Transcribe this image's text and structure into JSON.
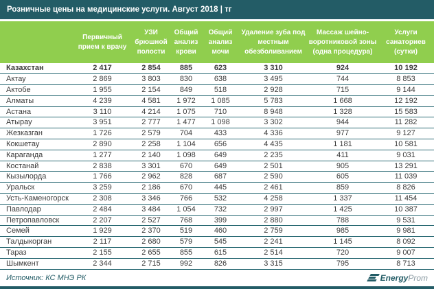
{
  "title": "Розничные цены на медицинские услуги. Август 2018 | тг",
  "footer": {
    "source": "Источник: КС МНЭ РК",
    "logo": {
      "icon": "energyprom-logo",
      "text_bold": "Energy",
      "text_light": "Prom"
    }
  },
  "colors": {
    "title_bar_teal": "#235c66",
    "header_green": "#90ce4e",
    "row_line": "#2a6a74",
    "body_text": "#3a3a3a",
    "footer_teal": "#1f5a64"
  },
  "chart_data": {
    "type": "table",
    "title": "Розничные цены на медицинские услуги. Август 2018 | тг",
    "unit": "тг",
    "row_header": "",
    "columns": [
      "Первичный прием к врачу",
      "УЗИ брюшной полости",
      "Общий анализ крови",
      "Общий анализ мочи",
      "Удаление зуба под местным обезболиванием",
      "Массаж шейно-воротниковой зоны (одна процедура)",
      "Услуги санаториев (сутки)"
    ],
    "rows": [
      {
        "name": "Казахстан",
        "values": [
          "2 417",
          "2 854",
          "885",
          "623",
          "3 310",
          "924",
          "10 192"
        ]
      },
      {
        "name": "Актау",
        "values": [
          "2 869",
          "3 803",
          "830",
          "638",
          "3 495",
          "744",
          "8 853"
        ]
      },
      {
        "name": "Актобе",
        "values": [
          "1 955",
          "2 154",
          "849",
          "518",
          "2 928",
          "715",
          "9 144"
        ]
      },
      {
        "name": "Алматы",
        "values": [
          "4 239",
          "4 581",
          "1 972",
          "1 085",
          "5 783",
          "1 668",
          "12 192"
        ]
      },
      {
        "name": "Астана",
        "values": [
          "3 110",
          "4 214",
          "1 075",
          "710",
          "8 948",
          "1 328",
          "15 583"
        ]
      },
      {
        "name": "Атырау",
        "values": [
          "3 951",
          "2 777",
          "1 477",
          "1 098",
          "3 302",
          "944",
          "11 282"
        ]
      },
      {
        "name": "Жезказган",
        "values": [
          "1 726",
          "2 579",
          "704",
          "433",
          "4 336",
          "977",
          "9 127"
        ]
      },
      {
        "name": "Кокшетау",
        "values": [
          "2 890",
          "2 258",
          "1 104",
          "656",
          "4 435",
          "1 181",
          "10 581"
        ]
      },
      {
        "name": "Караганда",
        "values": [
          "1 277",
          "2 140",
          "1 098",
          "649",
          "2 235",
          "411",
          "9 031"
        ]
      },
      {
        "name": "Костанай",
        "values": [
          "2 838",
          "3 301",
          "670",
          "649",
          "2 501",
          "905",
          "13 291"
        ]
      },
      {
        "name": "Кызылорда",
        "values": [
          "1 766",
          "2 962",
          "828",
          "687",
          "2 590",
          "605",
          "11 039"
        ]
      },
      {
        "name": "Уральск",
        "values": [
          "3 259",
          "2 186",
          "670",
          "445",
          "2 461",
          "859",
          "8 826"
        ]
      },
      {
        "name": "Усть-Каменогорск",
        "values": [
          "2 308",
          "3 346",
          "766",
          "532",
          "4 258",
          "1 337",
          "11 454"
        ]
      },
      {
        "name": "Павлодар",
        "values": [
          "2 484",
          "3 484",
          "1 054",
          "732",
          "2 997",
          "1 425",
          "10 387"
        ]
      },
      {
        "name": "Петропавловск",
        "values": [
          "2 207",
          "2 527",
          "768",
          "399",
          "2 880",
          "788",
          "9 531"
        ]
      },
      {
        "name": "Семей",
        "values": [
          "1 929",
          "2 370",
          "519",
          "460",
          "2 759",
          "985",
          "9 981"
        ]
      },
      {
        "name": "Талдыкорган",
        "values": [
          "2 117",
          "2 680",
          "579",
          "545",
          "2 241",
          "1 145",
          "8 092"
        ]
      },
      {
        "name": "Тараз",
        "values": [
          "2 155",
          "2 655",
          "855",
          "615",
          "2 514",
          "720",
          "9 007"
        ]
      },
      {
        "name": "Шымкент",
        "values": [
          "2 344",
          "2 715",
          "992",
          "826",
          "3 315",
          "795",
          "8 713"
        ]
      }
    ]
  }
}
